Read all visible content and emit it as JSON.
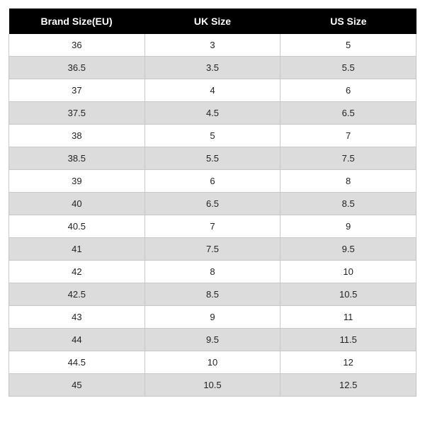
{
  "size_table": {
    "type": "table",
    "header_background": "#000000",
    "header_text_color": "#ffffff",
    "row_odd_background": "#ffffff",
    "row_even_background": "#dcdcdc",
    "border_color": "#c8c8c8",
    "header_fontsize": 14,
    "cell_fontsize": 13,
    "columns": [
      "Brand Size(EU)",
      "UK Size",
      "US Size"
    ],
    "rows": [
      [
        "36",
        "3",
        "5"
      ],
      [
        "36.5",
        "3.5",
        "5.5"
      ],
      [
        "37",
        "4",
        "6"
      ],
      [
        "37.5",
        "4.5",
        "6.5"
      ],
      [
        "38",
        "5",
        "7"
      ],
      [
        "38.5",
        "5.5",
        "7.5"
      ],
      [
        "39",
        "6",
        "8"
      ],
      [
        "40",
        "6.5",
        "8.5"
      ],
      [
        "40.5",
        "7",
        "9"
      ],
      [
        "41",
        "7.5",
        "9.5"
      ],
      [
        "42",
        "8",
        "10"
      ],
      [
        "42.5",
        "8.5",
        "10.5"
      ],
      [
        "43",
        "9",
        "11"
      ],
      [
        "44",
        "9.5",
        "11.5"
      ],
      [
        "44.5",
        "10",
        "12"
      ],
      [
        "45",
        "10.5",
        "12.5"
      ]
    ]
  }
}
